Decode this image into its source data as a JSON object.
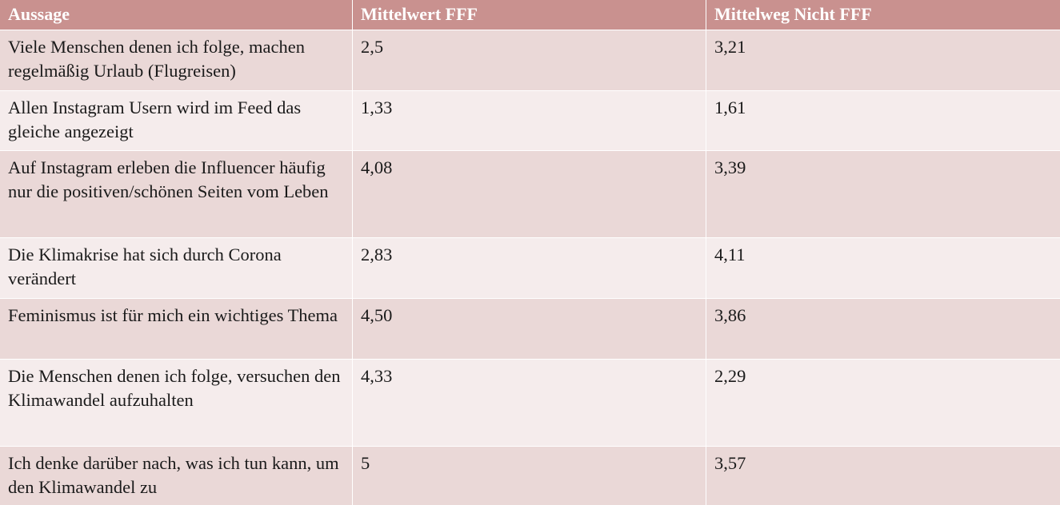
{
  "table": {
    "headers": [
      "Aussage",
      "Mittelwert FFF",
      "Mittelweg Nicht FFF"
    ],
    "rows": [
      {
        "statement": "Viele Menschen denen ich folge, machen regelmäßig Urlaub (Flugreisen)",
        "fff": "2,5",
        "not_fff": "3,21"
      },
      {
        "statement": "Allen Instagram Usern wird im Feed das gleiche angezeigt",
        "fff": "1,33",
        "not_fff": "1,61"
      },
      {
        "statement": "Auf Instagram erleben die Influencer häufig nur die positiven/schönen Seiten vom Leben",
        "fff": "4,08",
        "not_fff": "3,39"
      },
      {
        "statement": "Die Klimakrise hat sich durch Corona verändert",
        "fff": "2,83",
        "not_fff": "4,11"
      },
      {
        "statement": "Feminismus ist für mich ein wichtiges Thema",
        "fff": "4,50",
        "not_fff": "3,86"
      },
      {
        "statement": "Die Menschen denen ich folge, versuchen den Klimawandel aufzuhalten",
        "fff": "4,33",
        "not_fff": "2,29"
      },
      {
        "statement": "Ich denke darüber nach, was ich tun kann, um den Klimawandel zu",
        "fff": "5",
        "not_fff": "3,57"
      }
    ]
  },
  "colors": {
    "header_bg": "#c9918f",
    "row_odd": "#ead8d7",
    "row_even": "#f5ecec"
  }
}
